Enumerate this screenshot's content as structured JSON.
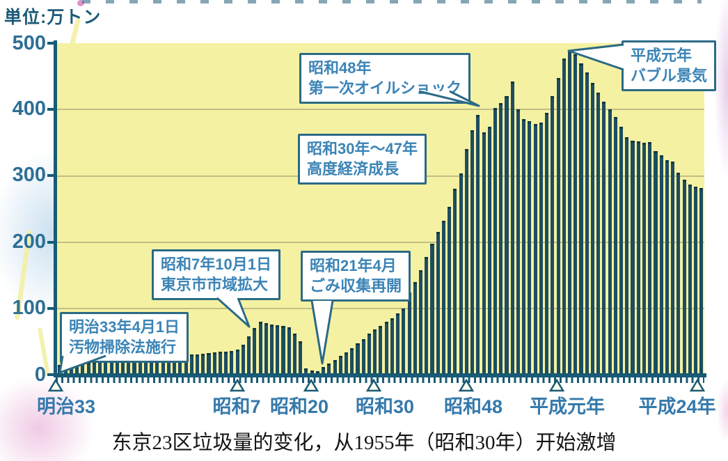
{
  "unit_label": "単位:万トン",
  "caption": "东京23区垃圾量的变化，从1955年（昭和30年）开始激增",
  "colors": {
    "bar": "#1d4d5f",
    "axis": "#175b76",
    "plot_background": "#f5f1a2",
    "label_blue": "#3579ab",
    "annotation_text": "#3b84b6",
    "annotation_border": "#2b6a85",
    "caption_text": "#141414"
  },
  "y_axis": {
    "ticks": [
      "500",
      "400",
      "300",
      "200",
      "100",
      "0"
    ]
  },
  "x_axis": {
    "ticks": [
      {
        "label": "明治33"
      },
      {
        "label": "昭和7"
      },
      {
        "label": "昭和20"
      },
      {
        "label": "昭和30"
      },
      {
        "label": "昭和48"
      },
      {
        "label": "平成元年"
      },
      {
        "label": "平成24年"
      }
    ]
  },
  "annotations": [
    {
      "line1": "明治33年4月1日",
      "line2": "汚物掃除法施行"
    },
    {
      "line1": "昭和7年10月1日",
      "line2": "東京市市域拡大"
    },
    {
      "line1": "昭和21年4月",
      "line2": "ごみ収集再開"
    },
    {
      "line1": "昭和30年～47年",
      "line2": "高度経済成長"
    },
    {
      "line1": "昭和48年",
      "line2": "第一次オイルショック"
    },
    {
      "line1": "平成元年",
      "line2": "バブル景気"
    }
  ],
  "chart_data": {
    "type": "bar",
    "title": "东京23区垃圾量的变化，从1955年（昭和30年）开始激增",
    "unit_label": "単位:万トン",
    "ylabel": "万トン",
    "ylim": [
      0,
      500
    ],
    "y_ticks": [
      0,
      100,
      200,
      300,
      400,
      500
    ],
    "grid": "horizontal gridlines at 100/200/300/400",
    "legend": "none",
    "x_start_year": 1900,
    "x_end_year": 2012,
    "x_tick_labels": [
      "明治33",
      "昭和7",
      "昭和20",
      "昭和30",
      "昭和48",
      "平成元年",
      "平成24年"
    ],
    "x_tick_years": [
      1900,
      1932,
      1945,
      1955,
      1973,
      1989,
      2012
    ],
    "values_note": "estimated 万トン per year, 1900-2012, read from bar heights",
    "values": [
      15,
      16,
      17,
      18,
      18,
      19,
      20,
      21,
      22,
      22,
      23,
      24,
      25,
      25,
      26,
      27,
      27,
      28,
      29,
      29,
      30,
      30,
      31,
      30,
      31,
      32,
      33,
      34,
      35,
      35,
      36,
      38,
      45,
      58,
      70,
      80,
      78,
      76,
      75,
      74,
      72,
      62,
      50,
      10,
      6,
      5,
      12,
      17,
      22,
      28,
      34,
      40,
      47,
      54,
      62,
      68,
      74,
      80,
      85,
      92,
      100,
      124,
      140,
      158,
      178,
      198,
      215,
      232,
      253,
      280,
      304,
      340,
      369,
      392,
      366,
      374,
      402,
      410,
      420,
      442,
      400,
      386,
      382,
      378,
      380,
      395,
      420,
      448,
      477,
      490,
      483,
      470,
      456,
      440,
      425,
      412,
      400,
      389,
      374,
      358,
      353,
      352,
      350,
      351,
      337,
      331,
      324,
      322,
      305,
      294,
      287,
      284,
      282
    ],
    "event_annotations": [
      {
        "year_label": "明治33年4月1日",
        "event": "汚物掃除法施行"
      },
      {
        "year_label": "昭和7年10月1日",
        "event": "東京市市域拡大"
      },
      {
        "year_label": "昭和21年4月",
        "event": "ごみ収集再開"
      },
      {
        "year_label": "昭和30年～47年",
        "event": "高度経済成長"
      },
      {
        "year_label": "昭和48年",
        "event": "第一次オイルショック"
      },
      {
        "year_label": "平成元年",
        "event": "バブル景気"
      }
    ]
  }
}
